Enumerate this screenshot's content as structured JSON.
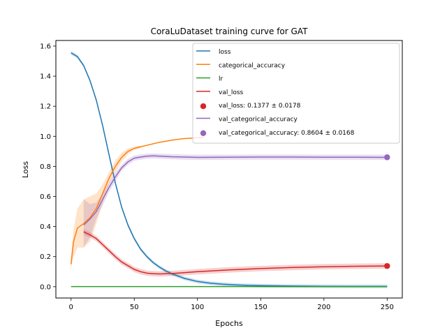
{
  "chart_data": {
    "type": "line",
    "title": "CoraLuDataset training curve for GAT",
    "xlabel": "Epochs",
    "ylabel": "Loss",
    "xlim": [
      -12,
      262
    ],
    "ylim": [
      -0.075,
      1.637
    ],
    "xticks": [
      0,
      50,
      100,
      150,
      200,
      250
    ],
    "yticks": [
      0.0,
      0.2,
      0.4,
      0.6,
      0.8,
      1.0,
      1.2,
      1.4,
      1.6
    ],
    "xtick_labels": [
      "0",
      "50",
      "100",
      "150",
      "200",
      "250"
    ],
    "ytick_labels": [
      "0.0",
      "0.2",
      "0.4",
      "0.6",
      "0.8",
      "1.0",
      "1.2",
      "1.4",
      "1.6"
    ],
    "grid": false,
    "legend_position": "top-right",
    "series": [
      {
        "name": "loss",
        "color": "#1f77b4",
        "x": [
          0,
          5,
          10,
          15,
          20,
          25,
          30,
          35,
          40,
          45,
          50,
          55,
          60,
          65,
          70,
          75,
          80,
          90,
          100,
          110,
          120,
          130,
          140,
          150,
          170,
          200,
          230,
          250
        ],
        "y": [
          1.555,
          1.53,
          1.47,
          1.37,
          1.24,
          1.07,
          0.88,
          0.69,
          0.53,
          0.41,
          0.32,
          0.25,
          0.2,
          0.16,
          0.13,
          0.105,
          0.085,
          0.055,
          0.035,
          0.024,
          0.017,
          0.012,
          0.009,
          0.007,
          0.005,
          0.003,
          0.002,
          0.002
        ],
        "band": 0.012
      },
      {
        "name": "categorical_accuracy",
        "color": "#ff7f0e",
        "x": [
          0,
          2,
          5,
          10,
          15,
          20,
          25,
          30,
          35,
          40,
          45,
          50,
          55,
          60,
          70,
          80,
          90,
          100,
          105
        ],
        "y": [
          0.15,
          0.3,
          0.39,
          0.42,
          0.46,
          0.52,
          0.62,
          0.72,
          0.8,
          0.86,
          0.9,
          0.92,
          0.93,
          0.94,
          0.96,
          0.975,
          0.985,
          0.99,
          0.995
        ],
        "band_x": [
          0,
          2,
          5,
          10,
          15,
          20,
          25,
          30,
          35,
          40,
          45,
          50,
          55
        ],
        "band_upper": [
          0.2,
          0.38,
          0.52,
          0.58,
          0.6,
          0.62,
          0.68,
          0.76,
          0.84,
          0.89,
          0.92,
          0.93,
          0.94
        ],
        "band_lower": [
          0.12,
          0.2,
          0.26,
          0.26,
          0.3,
          0.42,
          0.56,
          0.68,
          0.76,
          0.83,
          0.88,
          0.91,
          0.92
        ]
      },
      {
        "name": "lr",
        "color": "#2ca02c",
        "x": [
          0,
          250
        ],
        "y": [
          0.001,
          0.001
        ]
      },
      {
        "name": "val_loss",
        "color": "#d62728",
        "x": [
          10,
          15,
          20,
          25,
          30,
          35,
          40,
          45,
          50,
          55,
          60,
          65,
          70,
          80,
          90,
          100,
          125,
          150,
          175,
          200,
          225,
          250
        ],
        "y": [
          0.365,
          0.345,
          0.32,
          0.28,
          0.24,
          0.2,
          0.165,
          0.14,
          0.115,
          0.1,
          0.09,
          0.087,
          0.085,
          0.088,
          0.094,
          0.1,
          0.112,
          0.121,
          0.128,
          0.133,
          0.136,
          0.138
        ],
        "band": 0.018
      },
      {
        "name": "val_categorical_accuracy",
        "color": "#9467bd",
        "x": [
          10,
          15,
          20,
          25,
          30,
          35,
          40,
          45,
          50,
          55,
          60,
          65,
          70,
          80,
          100,
          125,
          150,
          175,
          200,
          225,
          250
        ],
        "y": [
          0.41,
          0.45,
          0.5,
          0.58,
          0.66,
          0.73,
          0.79,
          0.83,
          0.855,
          0.862,
          0.868,
          0.87,
          0.868,
          0.864,
          0.86,
          0.861,
          0.862,
          0.862,
          0.861,
          0.861,
          0.86
        ],
        "band_x": [
          10,
          15,
          20,
          25,
          30,
          35,
          40,
          45,
          50,
          55,
          60,
          65,
          70,
          80,
          100,
          125,
          150,
          175,
          200,
          225,
          250
        ],
        "band_upper": [
          0.58,
          0.55,
          0.56,
          0.62,
          0.69,
          0.76,
          0.81,
          0.85,
          0.872,
          0.879,
          0.885,
          0.887,
          0.885,
          0.881,
          0.877,
          0.878,
          0.879,
          0.879,
          0.878,
          0.878,
          0.877
        ],
        "band_lower": [
          0.26,
          0.33,
          0.45,
          0.54,
          0.63,
          0.7,
          0.77,
          0.81,
          0.838,
          0.845,
          0.851,
          0.853,
          0.851,
          0.847,
          0.843,
          0.844,
          0.845,
          0.845,
          0.844,
          0.844,
          0.843
        ]
      }
    ],
    "markers": [
      {
        "name": "val_loss: 0.1377 ± 0.0178",
        "color": "#d62728",
        "x": 250,
        "y": 0.1377
      },
      {
        "name": "val_categorical_accuracy: 0.8604 ± 0.0168",
        "color": "#9467bd",
        "x": 250,
        "y": 0.8604
      }
    ],
    "legend": [
      {
        "label": "loss",
        "kind": "line",
        "color": "#1f77b4"
      },
      {
        "label": "categorical_accuracy",
        "kind": "line",
        "color": "#ff7f0e"
      },
      {
        "label": "lr",
        "kind": "line",
        "color": "#2ca02c"
      },
      {
        "label": "val_loss",
        "kind": "line",
        "color": "#d62728"
      },
      {
        "label": "val_loss: 0.1377 ± 0.0178",
        "kind": "marker",
        "color": "#d62728"
      },
      {
        "label": "val_categorical_accuracy",
        "kind": "line",
        "color": "#9467bd"
      },
      {
        "label": "val_categorical_accuracy: 0.8604 ± 0.0168",
        "kind": "marker",
        "color": "#9467bd"
      }
    ]
  }
}
